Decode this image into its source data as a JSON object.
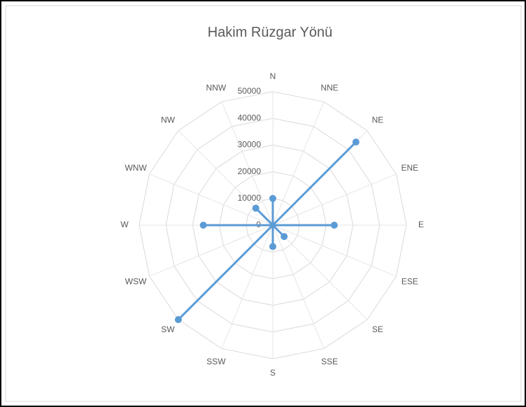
{
  "chart_data": {
    "type": "radar",
    "title": "Hakim Rüzgar Yönü",
    "categories": [
      "N",
      "NNE",
      "NE",
      "ENE",
      "E",
      "ESE",
      "SE",
      "SSE",
      "S",
      "SSW",
      "SW",
      "WSW",
      "W",
      "WNW",
      "NW",
      "NNW"
    ],
    "series": [
      {
        "name": null,
        "color": "#5b9bd5",
        "values": [
          10000,
          0,
          44000,
          0,
          23000,
          0,
          6000,
          0,
          8000,
          0,
          50000,
          0,
          26000,
          0,
          9000,
          0
        ]
      }
    ],
    "ylim": [
      0,
      50000
    ],
    "yticks": [
      0,
      10000,
      20000,
      30000,
      40000,
      50000
    ],
    "grid": true
  }
}
